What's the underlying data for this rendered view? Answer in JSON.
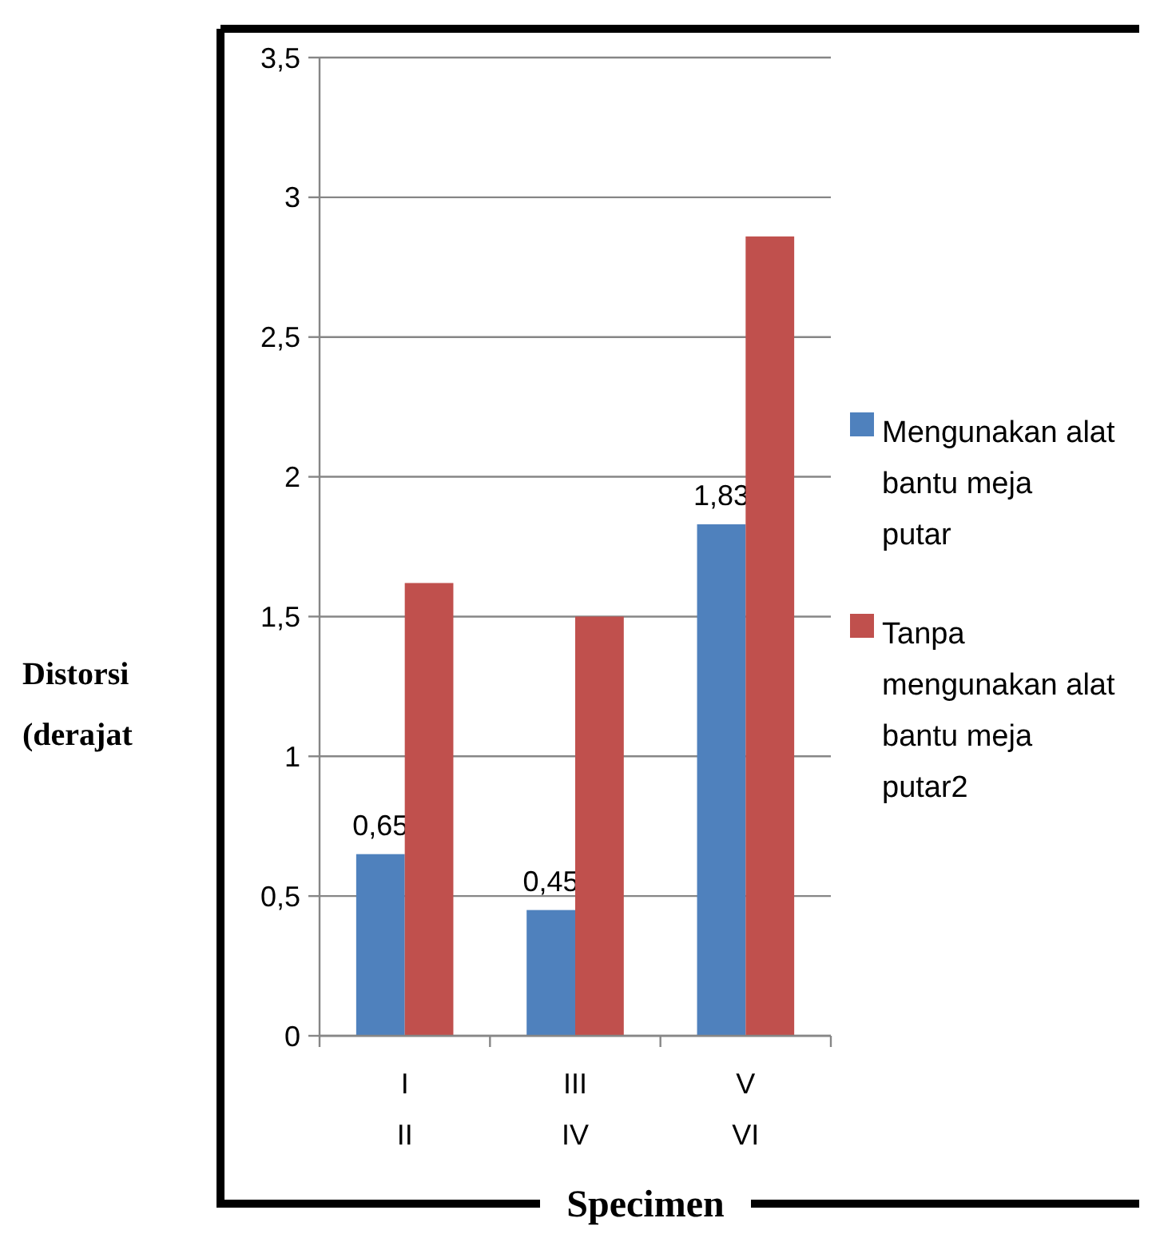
{
  "chart_data": {
    "type": "bar",
    "xlabel": "Specimen",
    "ylabel": "Distorsi (derajat",
    "categories": [
      "I\nII",
      "III\nIV",
      "V\nVI"
    ],
    "series": [
      {
        "name": "Mengunakan alat bantu meja putar",
        "color": "#4f81bd",
        "values": [
          0.65,
          0.45,
          1.83
        ],
        "value_labels": [
          "0,65",
          "0,45",
          "1,83"
        ]
      },
      {
        "name": "Tanpa mengunakan alat bantu meja putar2",
        "color": "#c0504d",
        "values": [
          1.62,
          1.5,
          2.86
        ]
      }
    ],
    "ylim": [
      0,
      3.5
    ],
    "yticks": [
      0,
      {
        "value": 0.5,
        "label": "0,5"
      },
      1,
      {
        "value": 1.5,
        "label": "1,5"
      },
      2,
      {
        "value": 2.5,
        "label": "2,5"
      },
      3,
      {
        "value": 3.5,
        "label": "3,5"
      }
    ],
    "grid": "y",
    "legend": "right"
  }
}
